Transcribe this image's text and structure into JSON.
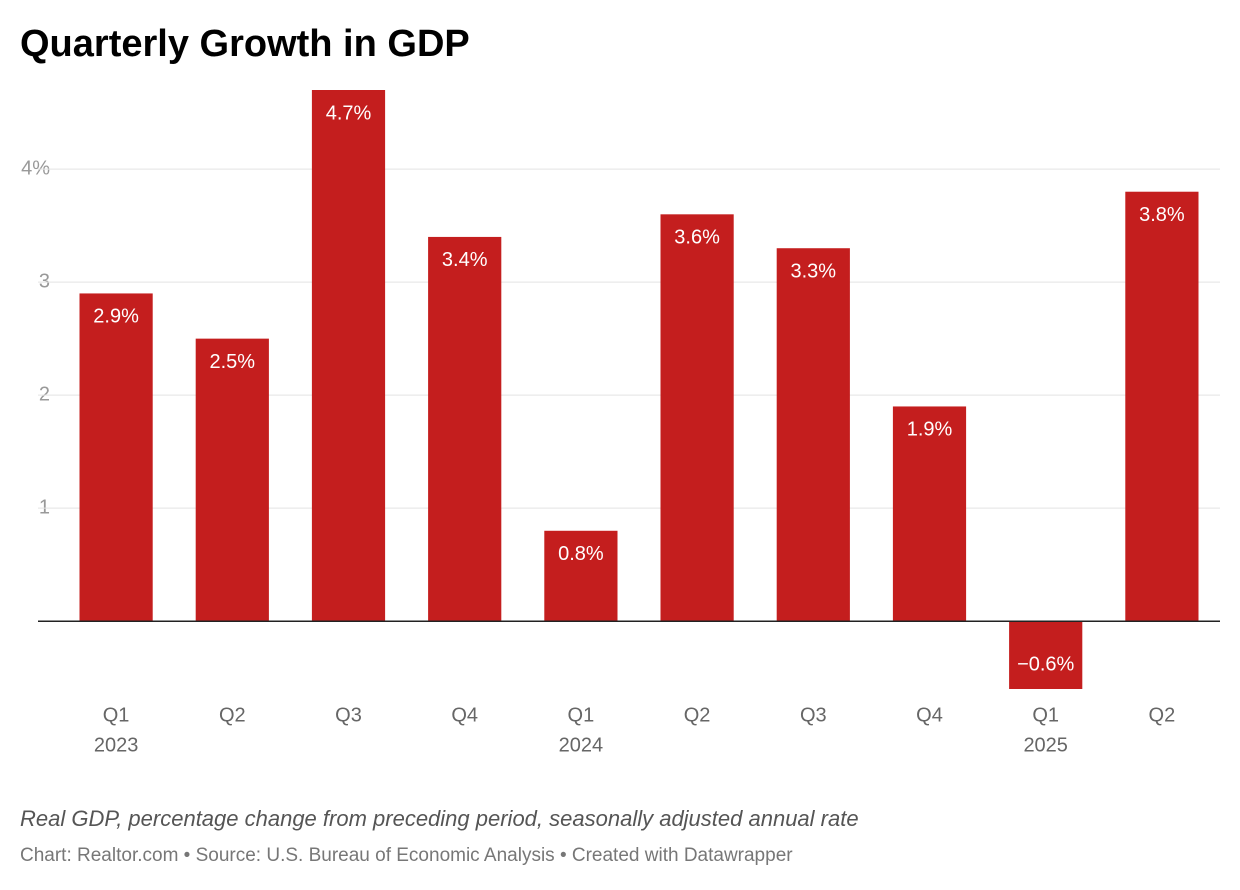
{
  "chart_data": {
    "type": "bar",
    "title": "Quarterly Growth in GDP",
    "categories": [
      "Q1",
      "Q2",
      "Q3",
      "Q4",
      "Q1",
      "Q2",
      "Q3",
      "Q4",
      "Q1",
      "Q2"
    ],
    "category_years": [
      "2023",
      null,
      null,
      null,
      "2024",
      null,
      null,
      null,
      "2025",
      null
    ],
    "values": [
      2.9,
      2.5,
      4.7,
      3.4,
      0.8,
      3.6,
      3.3,
      1.9,
      -0.6,
      3.8
    ],
    "value_labels": [
      "2.9%",
      "2.5%",
      "4.7%",
      "3.4%",
      "0.8%",
      "3.6%",
      "3.3%",
      "1.9%",
      "−0.6%",
      "3.8%"
    ],
    "color": "#c41e1e",
    "ylim": [
      -0.6,
      4.7
    ],
    "yticks": [
      1,
      2,
      3,
      {
        "value": 4,
        "label": "4%"
      }
    ],
    "grid": true,
    "notes": "Real GDP, percentage change from preceding period, seasonally adjusted annual rate",
    "source": "Chart: Realtor.com • Source: U.S. Bureau of Economic Analysis • Created with Datawrapper"
  }
}
